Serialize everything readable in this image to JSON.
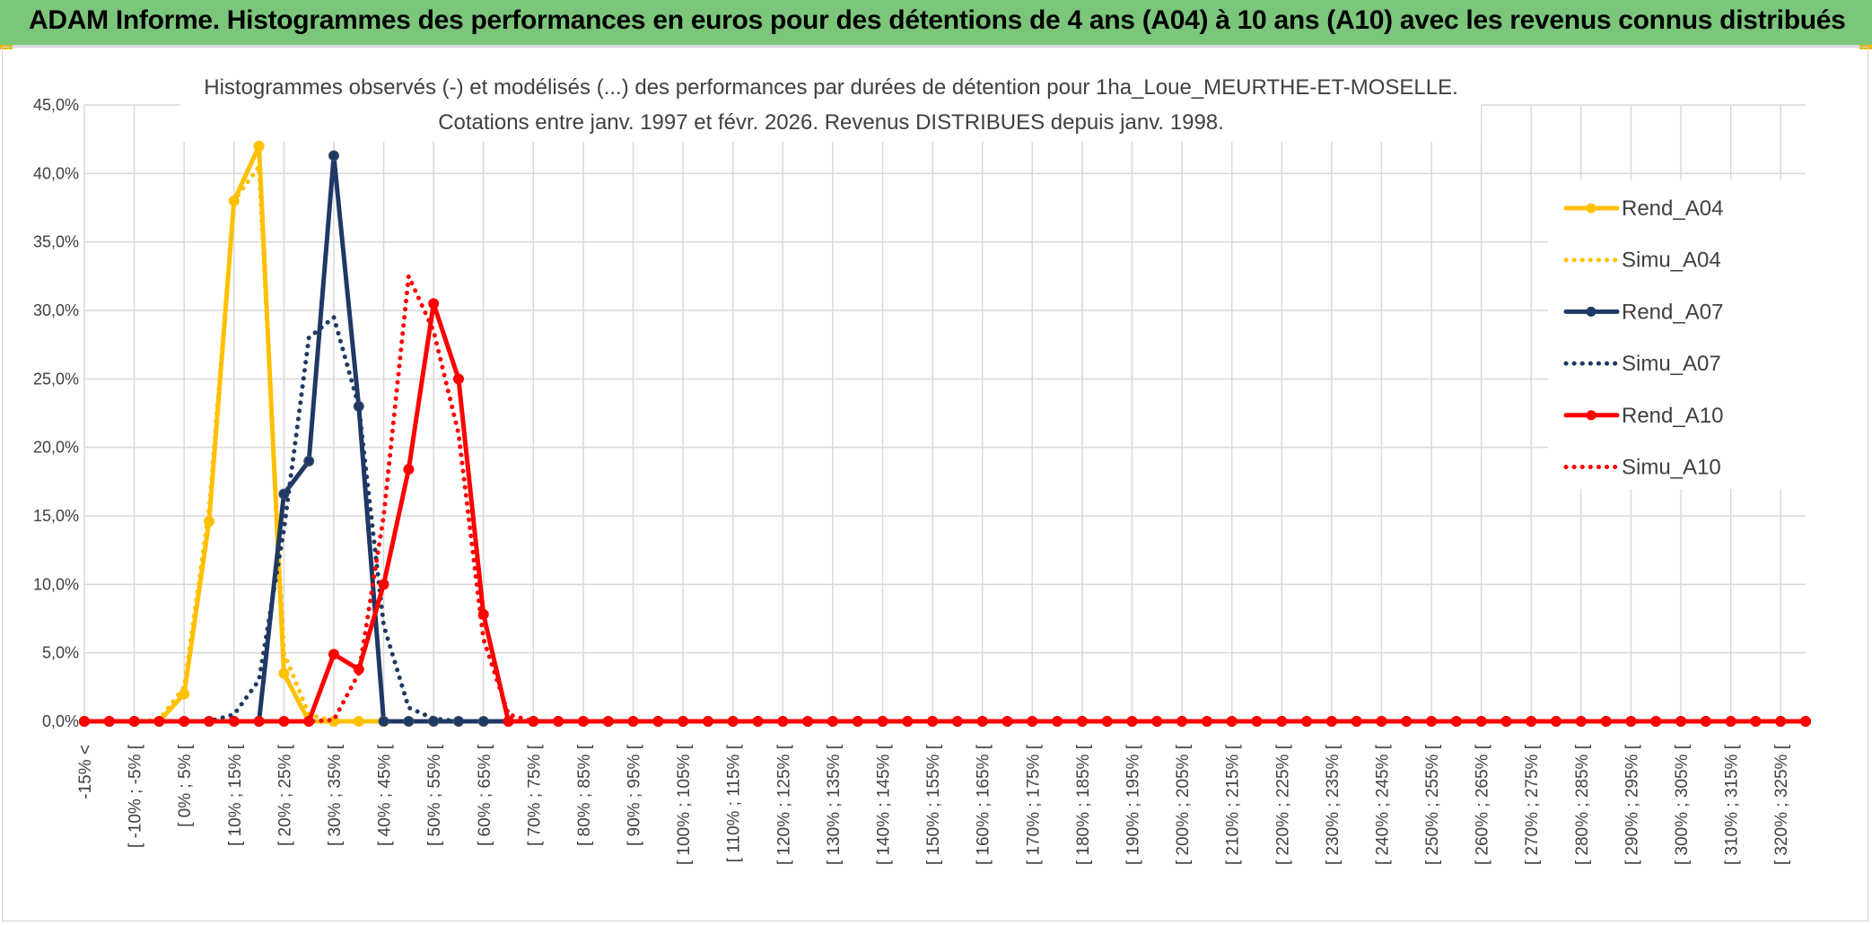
{
  "header": {
    "title": "ADAM Informe. Histogrammes des performances en euros pour des détentions de 4 ans (A04) à 10 ans (A10) avec les revenus connus distribués",
    "background": "#7bc67b"
  },
  "chart_data": {
    "type": "line",
    "title": "Histogrammes observés (-) et modélisés (...) des performances par durées de détention pour 1ha_Loue_MEURTHE-ET-MOSELLE.",
    "subtitle": "Cotations entre janv. 1997 et févr. 2026.  Revenus DISTRIBUES depuis janv. 1998.",
    "xlabel": "",
    "ylabel": "",
    "ylim": [
      0,
      45
    ],
    "yticks": [
      "0,0%",
      "5,0%",
      "10,0%",
      "15,0%",
      "20,0%",
      "25,0%",
      "30,0%",
      "35,0%",
      "40,0%",
      "45,0%"
    ],
    "grid": true,
    "legend_position": "right",
    "categories": [
      "-15% <",
      "[ -15% ; -10% [",
      "[ -10% ; -5% [",
      "[ -5% ; 0% [",
      "[ 0% ; 5% [",
      "[ 5% ; 10% [",
      "[ 10% ; 15% [",
      "[ 15% ; 20% [",
      "[ 20% ; 25% [",
      "[ 25% ; 30% [",
      "[ 30% ; 35% [",
      "[ 35% ; 40% [",
      "[ 40% ; 45% [",
      "[ 45% ; 50% [",
      "[ 50% ; 55% [",
      "[ 55% ; 60% [",
      "[ 60% ; 65% [",
      "[ 65% ; 70% [",
      "[ 70% ; 75% [",
      "[ 75% ; 80% [",
      "[ 80% ; 85% [",
      "[ 85% ; 90% [",
      "[ 90% ; 95% [",
      "[ 95% ; 100% [",
      "[ 100% ; 105% [",
      "[ 105% ; 110% [",
      "[ 110% ; 115% [",
      "[ 115% ; 120% [",
      "[ 120% ; 125% [",
      "[ 125% ; 130% [",
      "[ 130% ; 135% [",
      "[ 135% ; 140% [",
      "[ 140% ; 145% [",
      "[ 145% ; 150% [",
      "[ 150% ; 155% [",
      "[ 155% ; 160% [",
      "[ 160% ; 165% [",
      "[ 165% ; 170% [",
      "[ 170% ; 175% [",
      "[ 175% ; 180% [",
      "[ 180% ; 185% [",
      "[ 185% ; 190% [",
      "[ 190% ; 195% [",
      "[ 195% ; 200% [",
      "[ 200% ; 205% [",
      "[ 205% ; 210% [",
      "[ 210% ; 215% [",
      "[ 215% ; 220% [",
      "[ 220% ; 225% [",
      "[ 225% ; 230% [",
      "[ 230% ; 235% [",
      "[ 235% ; 240% [",
      "[ 240% ; 245% [",
      "[ 245% ; 250% [",
      "[ 250% ; 255% [",
      "[ 255% ; 260% [",
      "[ 260% ; 265% [",
      "[ 265% ; 270% [",
      "[ 270% ; 275% [",
      "[ 275% ; 280% [",
      "[ 280% ; 285% [",
      "[ 285% ; 290% [",
      "[ 290% ; 295% [",
      "[ 295% ; 300% [",
      "[ 300% ; 305% [",
      "[ 305% ; 310% [",
      "[ 310% ; 315% [",
      "[ 315% ; 320% [",
      "[ 320% ; 325% [",
      "[ 325% ; 330% ["
    ],
    "category_labels_shown": [
      "-15% <",
      "[ -10% ; -5% [",
      "[ 0% ; 5% [",
      "[ 10% ; 15% [",
      "[ 20% ; 25% [",
      "[ 30% ; 35% [",
      "[ 40% ; 45% [",
      "[ 50% ; 55% [",
      "[ 60% ; 65% [",
      "[ 70% ; 75% [",
      "[ 80% ; 85% [",
      "[ 90% ; 95% [",
      "[ 100% ; 105% [",
      "[ 110% ; 115% [",
      "[ 120% ; 125% [",
      "[ 130% ; 135% [",
      "[ 140% ; 145% [",
      "[ 150% ; 155% [",
      "[ 160% ; 165% [",
      "[ 170% ; 175% [",
      "[ 180% ; 185% [",
      "[ 190% ; 195% [",
      "[ 200% ; 205% [",
      "[ 210% ; 215% [",
      "[ 220% ; 225% [",
      "[ 230% ; 235% [",
      "[ 240% ; 245% [",
      "[ 250% ; 255% [",
      "[ 260% ; 265% [",
      "[ 270% ; 275% [",
      "[ 280% ; 285% [",
      "[ 290% ; 295% [",
      "[ 300% ; 305% [",
      "[ 310% ; 315% [",
      "[ 320% ; 325% ["
    ],
    "series": [
      {
        "name": "Rend_A04",
        "color": "#ffc000",
        "style": "solid",
        "markers": true,
        "values": [
          0,
          0,
          0,
          0,
          2.0,
          14.6,
          38.0,
          42.0,
          3.5,
          0,
          0,
          0,
          0,
          0,
          0,
          0,
          0,
          0,
          0,
          0,
          0,
          0,
          0,
          0,
          0,
          0,
          0,
          0,
          0,
          0,
          0,
          0,
          0,
          0,
          0,
          0,
          0,
          0,
          0,
          0,
          0,
          0,
          0,
          0,
          0,
          0,
          0,
          0,
          0,
          0,
          0,
          0,
          0,
          0,
          0,
          0,
          0,
          0,
          0,
          0,
          0,
          0,
          0,
          0,
          0,
          0,
          0,
          0,
          0,
          0
        ]
      },
      {
        "name": "Simu_A04",
        "color": "#ffc000",
        "style": "dotted",
        "markers": false,
        "values": [
          0,
          0,
          0,
          0.1,
          2.5,
          15.5,
          38.0,
          40.5,
          5.0,
          0.5,
          0,
          0,
          0,
          0,
          0,
          0,
          0,
          0,
          0,
          0,
          0,
          0,
          0,
          0,
          0,
          0,
          0,
          0,
          0,
          0,
          0,
          0,
          0,
          0,
          0,
          0,
          0,
          0,
          0,
          0,
          0,
          0,
          0,
          0,
          0,
          0,
          0,
          0,
          0,
          0,
          0,
          0,
          0,
          0,
          0,
          0,
          0,
          0,
          0,
          0,
          0,
          0,
          0,
          0,
          0,
          0,
          0,
          0,
          0,
          0
        ]
      },
      {
        "name": "Rend_A07",
        "color": "#1f3864",
        "style": "solid",
        "markers": true,
        "values": [
          0,
          0,
          0,
          0,
          0,
          0,
          0,
          0,
          16.6,
          19.0,
          41.3,
          23.0,
          0,
          0,
          0,
          0,
          0,
          0,
          0,
          0,
          0,
          0,
          0,
          0,
          0,
          0,
          0,
          0,
          0,
          0,
          0,
          0,
          0,
          0,
          0,
          0,
          0,
          0,
          0,
          0,
          0,
          0,
          0,
          0,
          0,
          0,
          0,
          0,
          0,
          0,
          0,
          0,
          0,
          0,
          0,
          0,
          0,
          0,
          0,
          0,
          0,
          0,
          0,
          0,
          0,
          0,
          0,
          0,
          0,
          0
        ]
      },
      {
        "name": "Simu_A07",
        "color": "#1f3864",
        "style": "dotted",
        "markers": false,
        "values": [
          0,
          0,
          0,
          0,
          0,
          0,
          0.5,
          3.0,
          14.0,
          28.0,
          29.5,
          23.0,
          7.0,
          1.0,
          0.2,
          0,
          0,
          0,
          0,
          0,
          0,
          0,
          0,
          0,
          0,
          0,
          0,
          0,
          0,
          0,
          0,
          0,
          0,
          0,
          0,
          0,
          0,
          0,
          0,
          0,
          0,
          0,
          0,
          0,
          0,
          0,
          0,
          0,
          0,
          0,
          0,
          0,
          0,
          0,
          0,
          0,
          0,
          0,
          0,
          0,
          0,
          0,
          0,
          0,
          0,
          0,
          0,
          0,
          0,
          0
        ]
      },
      {
        "name": "Rend_A10",
        "color": "#ff0000",
        "style": "solid",
        "markers": true,
        "values": [
          0,
          0,
          0,
          0,
          0,
          0,
          0,
          0,
          0,
          0,
          4.9,
          3.8,
          10.0,
          18.4,
          30.5,
          25.0,
          7.8,
          0,
          0,
          0,
          0,
          0,
          0,
          0,
          0,
          0,
          0,
          0,
          0,
          0,
          0,
          0,
          0,
          0,
          0,
          0,
          0,
          0,
          0,
          0,
          0,
          0,
          0,
          0,
          0,
          0,
          0,
          0,
          0,
          0,
          0,
          0,
          0,
          0,
          0,
          0,
          0,
          0,
          0,
          0,
          0,
          0,
          0,
          0,
          0,
          0,
          0,
          0,
          0,
          0
        ]
      },
      {
        "name": "Simu_A10",
        "color": "#ff0000",
        "style": "dotted",
        "markers": false,
        "values": [
          0,
          0,
          0,
          0,
          0,
          0,
          0,
          0,
          0,
          0,
          0.1,
          3.5,
          15.0,
          32.5,
          28.5,
          21.0,
          6.0,
          0.5,
          0,
          0,
          0,
          0,
          0,
          0,
          0,
          0,
          0,
          0,
          0,
          0,
          0,
          0,
          0,
          0,
          0,
          0,
          0,
          0,
          0,
          0,
          0,
          0,
          0,
          0,
          0,
          0,
          0,
          0,
          0,
          0,
          0,
          0,
          0,
          0,
          0,
          0,
          0,
          0,
          0,
          0,
          0,
          0,
          0,
          0,
          0,
          0,
          0,
          0,
          0,
          0
        ]
      }
    ]
  }
}
